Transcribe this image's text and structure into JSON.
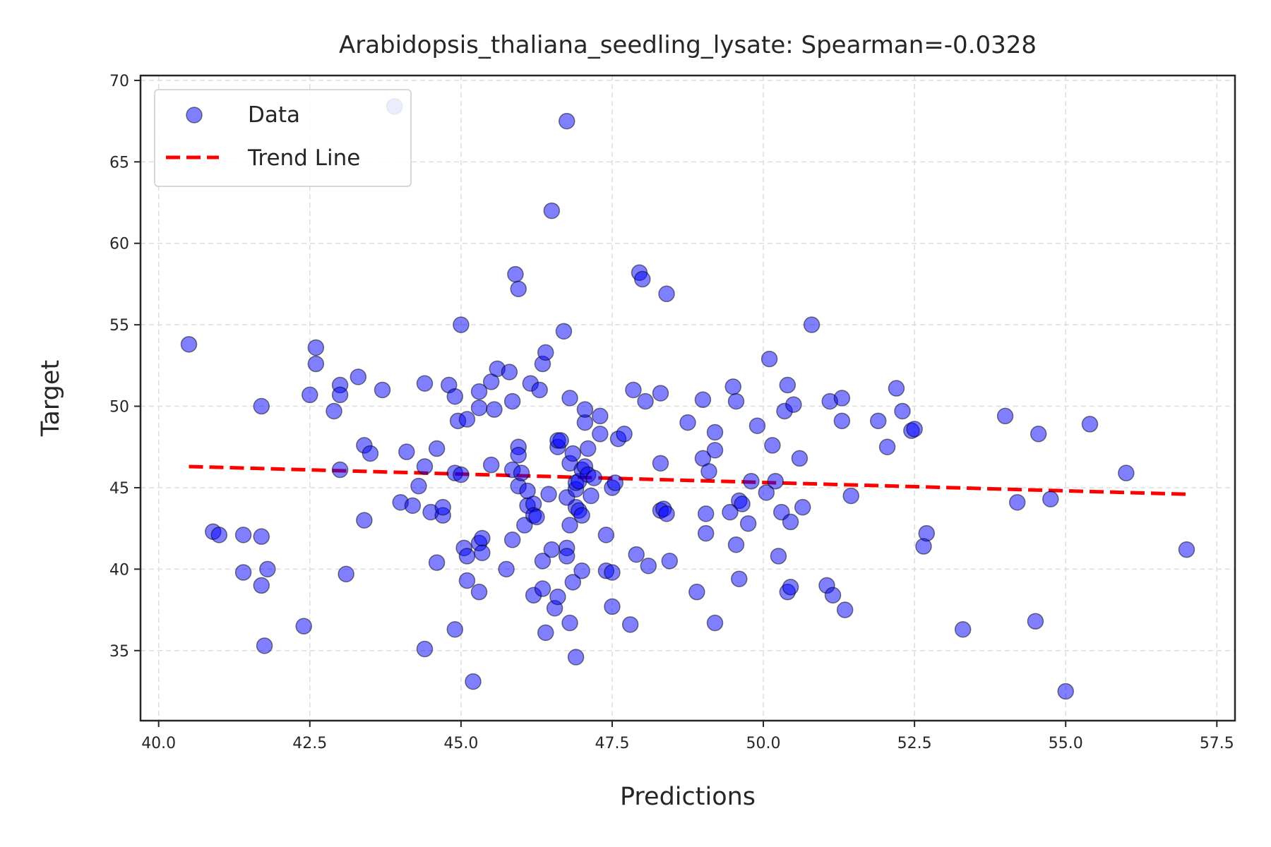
{
  "chart_data": {
    "type": "scatter",
    "title": "Arabidopsis_thaliana_seedling_lysate: Spearman=-0.0328",
    "xlabel": "Predictions",
    "ylabel": "Target",
    "xlim": [
      39.7,
      57.8
    ],
    "ylim": [
      30.7,
      70.3
    ],
    "xticks": [
      40.0,
      42.5,
      45.0,
      47.5,
      50.0,
      52.5,
      55.0,
      57.5
    ],
    "xtick_labels": [
      "40.0",
      "42.5",
      "45.0",
      "47.5",
      "50.0",
      "52.5",
      "55.0",
      "57.5"
    ],
    "yticks": [
      35,
      40,
      45,
      50,
      55,
      60,
      65,
      70
    ],
    "ytick_labels": [
      "35",
      "40",
      "45",
      "50",
      "55",
      "60",
      "65",
      "70"
    ],
    "grid": true,
    "legend_position": "top-left",
    "legend": [
      "Data",
      "Trend Line"
    ],
    "colors": {
      "points": "#0000ff",
      "trend": "#ff0000",
      "axes": "#262626",
      "grid": "#dddddd"
    },
    "trend_line": {
      "x": [
        40.5,
        57.0
      ],
      "y": [
        46.3,
        44.6
      ]
    },
    "series": [
      {
        "name": "Data",
        "points": [
          [
            40.5,
            53.8
          ],
          [
            40.9,
            42.3
          ],
          [
            41.0,
            42.1
          ],
          [
            41.4,
            42.1
          ],
          [
            41.4,
            39.8
          ],
          [
            41.7,
            50.0
          ],
          [
            41.7,
            42.0
          ],
          [
            41.7,
            39.0
          ],
          [
            41.75,
            35.3
          ],
          [
            41.8,
            40.0
          ],
          [
            42.4,
            36.5
          ],
          [
            42.5,
            50.7
          ],
          [
            42.6,
            52.6
          ],
          [
            42.6,
            53.6
          ],
          [
            42.9,
            49.7
          ],
          [
            43.0,
            51.3
          ],
          [
            43.0,
            50.7
          ],
          [
            43.0,
            46.1
          ],
          [
            43.1,
            39.7
          ],
          [
            43.3,
            51.8
          ],
          [
            43.4,
            43.0
          ],
          [
            43.4,
            47.6
          ],
          [
            43.5,
            47.1
          ],
          [
            43.7,
            51.0
          ],
          [
            43.9,
            68.4
          ],
          [
            44.0,
            44.1
          ],
          [
            44.1,
            47.2
          ],
          [
            44.2,
            43.9
          ],
          [
            44.3,
            45.1
          ],
          [
            44.4,
            51.4
          ],
          [
            44.4,
            46.3
          ],
          [
            44.4,
            35.1
          ],
          [
            44.5,
            43.5
          ],
          [
            44.6,
            47.4
          ],
          [
            44.6,
            40.4
          ],
          [
            44.7,
            43.3
          ],
          [
            44.7,
            43.8
          ],
          [
            44.8,
            51.3
          ],
          [
            44.9,
            50.6
          ],
          [
            44.9,
            36.3
          ],
          [
            44.9,
            45.9
          ],
          [
            44.95,
            49.1
          ],
          [
            45.0,
            45.8
          ],
          [
            45.0,
            55.0
          ],
          [
            45.05,
            41.3
          ],
          [
            45.1,
            49.2
          ],
          [
            45.1,
            40.8
          ],
          [
            45.1,
            39.3
          ],
          [
            45.2,
            33.1
          ],
          [
            45.3,
            38.6
          ],
          [
            45.3,
            41.6
          ],
          [
            45.3,
            49.9
          ],
          [
            45.3,
            50.9
          ],
          [
            45.35,
            41.9
          ],
          [
            45.35,
            41.0
          ],
          [
            45.5,
            51.5
          ],
          [
            45.5,
            46.4
          ],
          [
            45.55,
            49.8
          ],
          [
            45.6,
            52.3
          ],
          [
            45.75,
            40.0
          ],
          [
            45.8,
            52.1
          ],
          [
            45.85,
            50.3
          ],
          [
            45.85,
            46.1
          ],
          [
            45.85,
            41.8
          ],
          [
            45.9,
            58.1
          ],
          [
            45.95,
            57.2
          ],
          [
            45.95,
            47.5
          ],
          [
            45.95,
            47.0
          ],
          [
            45.95,
            45.1
          ],
          [
            46.0,
            45.9
          ],
          [
            46.05,
            42.7
          ],
          [
            46.1,
            43.9
          ],
          [
            46.1,
            44.8
          ],
          [
            46.15,
            51.4
          ],
          [
            46.2,
            38.4
          ],
          [
            46.2,
            44.0
          ],
          [
            46.2,
            43.3
          ],
          [
            46.25,
            43.2
          ],
          [
            46.3,
            51.0
          ],
          [
            46.35,
            38.8
          ],
          [
            46.35,
            40.5
          ],
          [
            46.35,
            52.6
          ],
          [
            46.4,
            36.1
          ],
          [
            46.4,
            53.3
          ],
          [
            46.45,
            44.6
          ],
          [
            46.5,
            62.0
          ],
          [
            46.5,
            41.2
          ],
          [
            46.55,
            37.6
          ],
          [
            46.6,
            47.5
          ],
          [
            46.6,
            47.9
          ],
          [
            46.6,
            38.3
          ],
          [
            46.65,
            47.9
          ],
          [
            46.7,
            54.6
          ],
          [
            46.75,
            67.5
          ],
          [
            46.75,
            41.3
          ],
          [
            46.75,
            40.8
          ],
          [
            46.75,
            44.4
          ],
          [
            46.8,
            42.7
          ],
          [
            46.8,
            46.5
          ],
          [
            46.8,
            36.7
          ],
          [
            46.8,
            50.5
          ],
          [
            46.85,
            47.1
          ],
          [
            46.85,
            39.2
          ],
          [
            46.9,
            43.8
          ],
          [
            46.9,
            44.9
          ],
          [
            46.9,
            45.3
          ],
          [
            46.9,
            34.6
          ],
          [
            46.95,
            43.6
          ],
          [
            46.95,
            45.4
          ],
          [
            47.0,
            46.1
          ],
          [
            47.0,
            39.9
          ],
          [
            47.0,
            43.3
          ],
          [
            47.05,
            46.3
          ],
          [
            47.05,
            49.0
          ],
          [
            47.05,
            49.8
          ],
          [
            47.1,
            45.8
          ],
          [
            47.1,
            47.4
          ],
          [
            47.15,
            44.5
          ],
          [
            47.2,
            45.6
          ],
          [
            47.3,
            49.4
          ],
          [
            47.3,
            48.3
          ],
          [
            47.4,
            42.1
          ],
          [
            47.4,
            39.9
          ],
          [
            47.5,
            37.7
          ],
          [
            47.5,
            39.8
          ],
          [
            47.5,
            45.0
          ],
          [
            47.55,
            45.3
          ],
          [
            47.6,
            48.0
          ],
          [
            47.7,
            48.3
          ],
          [
            47.8,
            36.6
          ],
          [
            47.85,
            51.0
          ],
          [
            47.9,
            40.9
          ],
          [
            47.95,
            58.2
          ],
          [
            48.0,
            57.8
          ],
          [
            48.05,
            50.3
          ],
          [
            48.1,
            40.2
          ],
          [
            48.3,
            46.5
          ],
          [
            48.3,
            50.8
          ],
          [
            48.3,
            43.6
          ],
          [
            48.35,
            43.7
          ],
          [
            48.4,
            56.9
          ],
          [
            48.4,
            43.4
          ],
          [
            48.45,
            40.5
          ],
          [
            48.75,
            49.0
          ],
          [
            48.9,
            38.6
          ],
          [
            49.0,
            50.4
          ],
          [
            49.0,
            46.8
          ],
          [
            49.05,
            43.4
          ],
          [
            49.05,
            42.2
          ],
          [
            49.1,
            46.0
          ],
          [
            49.2,
            36.7
          ],
          [
            49.2,
            47.3
          ],
          [
            49.2,
            48.4
          ],
          [
            49.45,
            43.5
          ],
          [
            49.5,
            51.2
          ],
          [
            49.55,
            41.5
          ],
          [
            49.55,
            50.3
          ],
          [
            49.6,
            44.2
          ],
          [
            49.6,
            39.4
          ],
          [
            49.65,
            44.0
          ],
          [
            49.75,
            42.8
          ],
          [
            49.8,
            45.4
          ],
          [
            49.9,
            48.8
          ],
          [
            50.05,
            44.7
          ],
          [
            50.1,
            52.9
          ],
          [
            50.15,
            47.6
          ],
          [
            50.2,
            45.4
          ],
          [
            50.25,
            40.8
          ],
          [
            50.3,
            43.5
          ],
          [
            50.35,
            49.7
          ],
          [
            50.4,
            51.3
          ],
          [
            50.4,
            38.6
          ],
          [
            50.45,
            38.9
          ],
          [
            50.45,
            42.9
          ],
          [
            50.5,
            50.1
          ],
          [
            50.6,
            46.8
          ],
          [
            50.65,
            43.8
          ],
          [
            50.8,
            55.0
          ],
          [
            51.05,
            39.0
          ],
          [
            51.1,
            50.3
          ],
          [
            51.15,
            38.4
          ],
          [
            51.3,
            50.5
          ],
          [
            51.3,
            49.1
          ],
          [
            51.35,
            37.5
          ],
          [
            51.45,
            44.5
          ],
          [
            51.9,
            49.1
          ],
          [
            52.05,
            47.5
          ],
          [
            52.2,
            51.1
          ],
          [
            52.3,
            49.7
          ],
          [
            52.45,
            48.5
          ],
          [
            52.5,
            48.6
          ],
          [
            52.65,
            41.4
          ],
          [
            52.7,
            42.2
          ],
          [
            53.3,
            36.3
          ],
          [
            54.0,
            49.4
          ],
          [
            54.2,
            44.1
          ],
          [
            54.5,
            36.8
          ],
          [
            54.55,
            48.3
          ],
          [
            54.75,
            44.3
          ],
          [
            55.0,
            32.5
          ],
          [
            55.4,
            48.9
          ],
          [
            56.0,
            45.9
          ],
          [
            57.0,
            41.2
          ]
        ]
      }
    ]
  }
}
